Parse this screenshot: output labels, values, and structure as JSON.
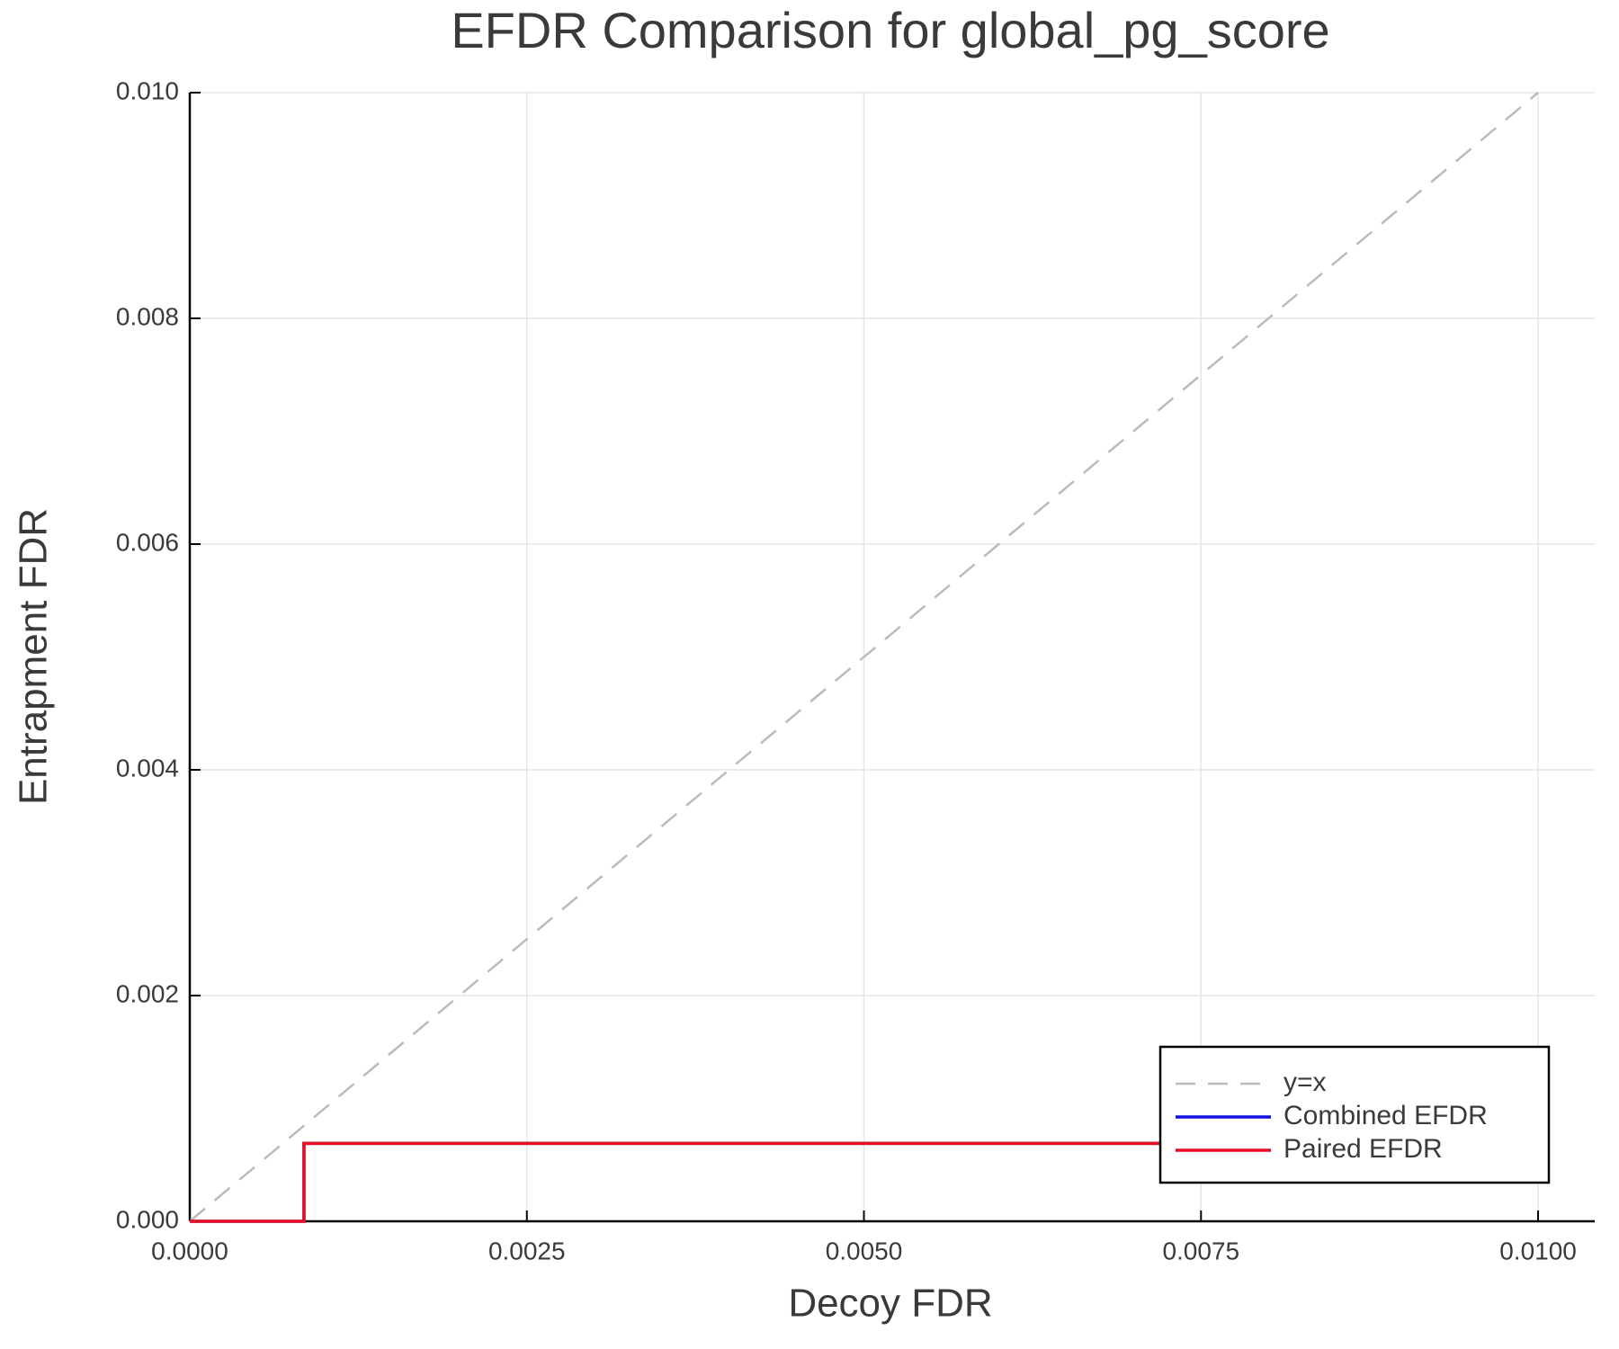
{
  "chart_data": {
    "type": "line",
    "title": "EFDR Comparison for global_pg_score",
    "x_label": "Decoy FDR",
    "y_label": "Entrapment FDR",
    "xlim": [
      0,
      0.01042
    ],
    "ylim": [
      0,
      0.01
    ],
    "xticks": [
      {
        "value": 0,
        "label": "0.0000"
      },
      {
        "value": 0.0025,
        "label": "0.0025"
      },
      {
        "value": 0.005,
        "label": "0.0050"
      },
      {
        "value": 0.0075,
        "label": "0.0075"
      },
      {
        "value": 0.01,
        "label": "0.0100"
      }
    ],
    "yticks": [
      {
        "value": 0,
        "label": "0.000"
      },
      {
        "value": 0.002,
        "label": "0.002"
      },
      {
        "value": 0.004,
        "label": "0.004"
      },
      {
        "value": 0.006,
        "label": "0.006"
      },
      {
        "value": 0.008,
        "label": "0.008"
      },
      {
        "value": 0.01,
        "label": "0.010"
      }
    ],
    "grid": true,
    "legend_position": "bottom-right",
    "series": [
      {
        "name": "y=x",
        "color": "#bbbbbb",
        "dash": true,
        "x": [
          0,
          0.01
        ],
        "values": [
          0,
          0.01
        ]
      },
      {
        "name": "Combined EFDR",
        "color": "#1010e0",
        "dash": false,
        "x": [
          0,
          0.000847,
          0.000847,
          0.01
        ],
        "values": [
          0,
          0,
          0.00069,
          0.00069
        ]
      },
      {
        "name": "Paired EFDR",
        "color": "#e81020",
        "dash": false,
        "x": [
          0,
          0.000847,
          0.000847,
          0.01
        ],
        "values": [
          0,
          0,
          0.00069,
          0.00069
        ]
      }
    ]
  }
}
